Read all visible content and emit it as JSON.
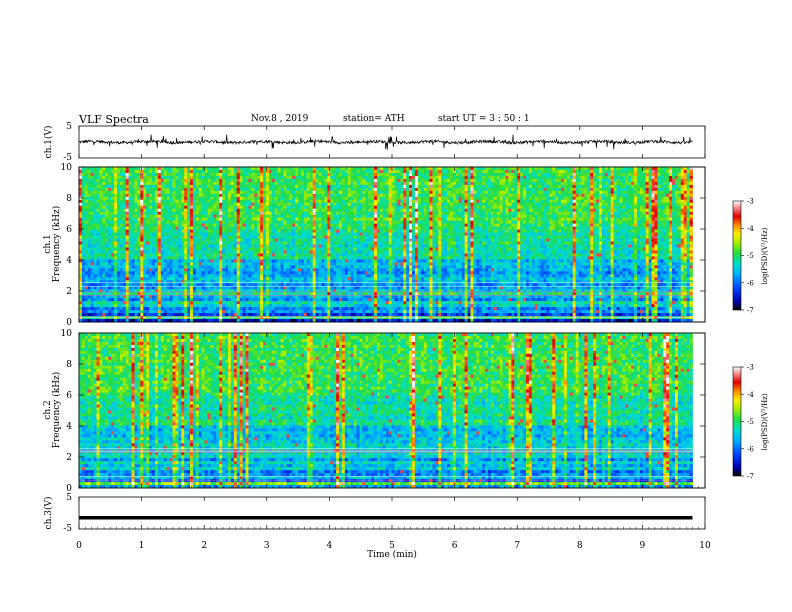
{
  "header": {
    "title": "VLF  Spectra",
    "date": "Nov.8  , 2019",
    "station": "station= ATH",
    "start": "start  UT  =    3  : 50 : 1"
  },
  "chart_data": [
    {
      "type": "line",
      "panel": "ch1-waveform",
      "ylabel": "ch.1(V)",
      "yticks": [
        "5",
        "-5"
      ],
      "ylim": [
        -5,
        5
      ],
      "xlim": [
        0,
        10
      ],
      "description_values": "noisy baseline near 0 V with spikes up to about +/-2 V, data through ~9.8 min"
    },
    {
      "type": "heatmap",
      "panel": "ch1-spectrogram",
      "ylabel": "ch.1\nFrequency  (kHz)",
      "ylabel_lines": [
        "ch.1",
        "Frequency  (kHz)"
      ],
      "yticks": [
        "0",
        "2",
        "4",
        "6",
        "8",
        "10"
      ],
      "ylim": [
        0,
        10
      ],
      "xlim": [
        0,
        10
      ],
      "colorbar": {
        "ticks": [
          "-3",
          "-4",
          "-5",
          "-6",
          "-7"
        ],
        "label": "log(PSD)(V²/Hz)",
        "range": [
          -7,
          -3
        ]
      }
    },
    {
      "type": "heatmap",
      "panel": "ch2-spectrogram",
      "ylabel_lines": [
        "ch.2",
        "Frequency  (kHz)"
      ],
      "yticks": [
        "0",
        "2",
        "4",
        "6",
        "8",
        "10"
      ],
      "ylim": [
        0,
        10
      ],
      "xlim": [
        0,
        10
      ],
      "colorbar": {
        "ticks": [
          "-3",
          "-4",
          "-5",
          "-6",
          "-7"
        ],
        "label": "log(PSD)(V²/Hz)",
        "range": [
          -7,
          -3
        ]
      }
    },
    {
      "type": "line",
      "panel": "ch3-waveform",
      "ylabel": "ch.3(V)",
      "yticks": [
        "5",
        "-5"
      ],
      "ylim": [
        -5,
        5
      ],
      "xlim": [
        0,
        10
      ],
      "flat_value": -1.5
    }
  ],
  "xaxis": {
    "label": "Time  (min)",
    "ticks": [
      "0",
      "1",
      "2",
      "3",
      "4",
      "5",
      "6",
      "7",
      "8",
      "9",
      "10"
    ]
  },
  "colors": {
    "colormap": [
      "#000000",
      "#0000aa",
      "#0044ff",
      "#00aaff",
      "#00ddcc",
      "#22dd44",
      "#aaee00",
      "#ffee00",
      "#ff8800",
      "#dd0000",
      "#ffffff"
    ]
  }
}
